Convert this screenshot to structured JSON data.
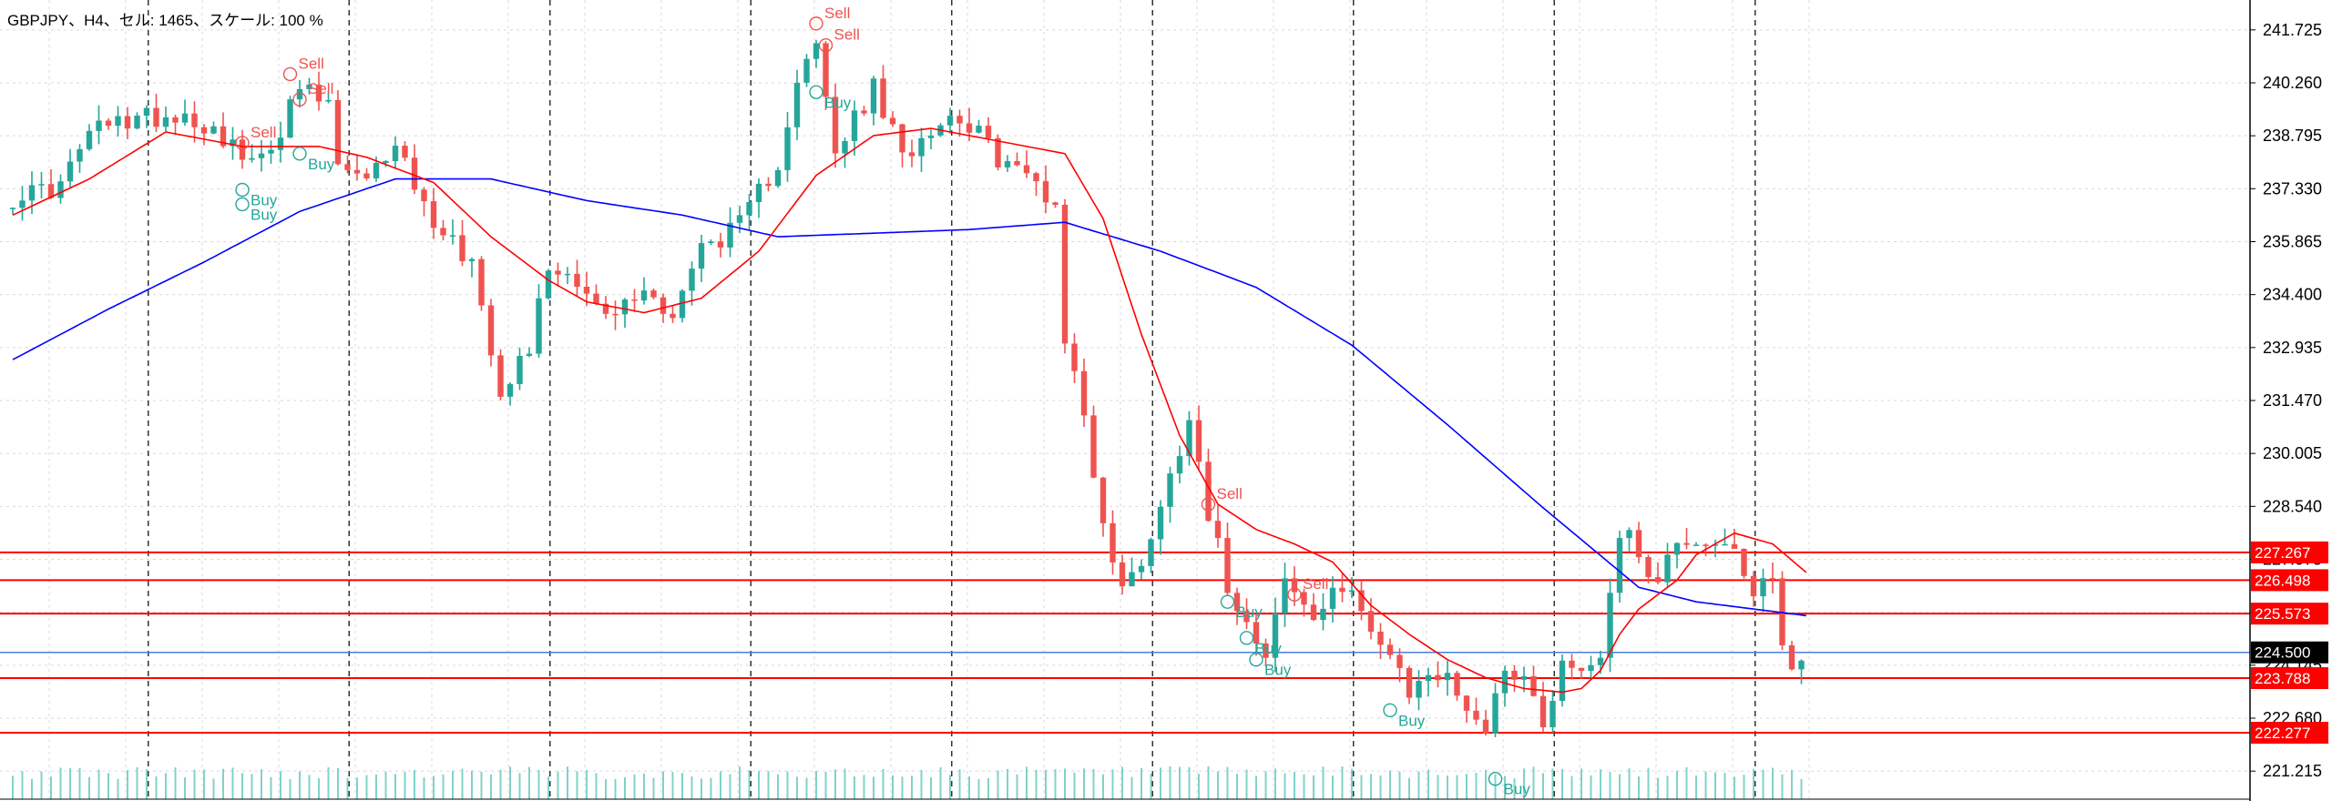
{
  "header": {
    "title": "GBPJPY、H4、セル: 1465、スケール: 100 %"
  },
  "colors": {
    "bull": "#26a69a",
    "bear": "#ef5350",
    "ma_fast": "#ff0000",
    "ma_slow": "#0000ff",
    "level": "#ff0000",
    "bid": "#4a7fe0",
    "vsep": "#333333",
    "grid": "#d9d9d9",
    "signal_sell": "#ef5350",
    "signal_buy": "#26a69a"
  },
  "chart_data": {
    "type": "candlestick",
    "symbol": "GBPJPY",
    "timeframe": "H4",
    "ylim": [
      220.64,
      242.35
    ],
    "y_ticks": [
      "241.725",
      "240.260",
      "238.795",
      "237.330",
      "235.865",
      "234.400",
      "232.935",
      "231.470",
      "230.005",
      "228.540",
      "227.075",
      "225.610",
      "224.145",
      "222.680",
      "221.215"
    ],
    "y_tick_values": [
      241.725,
      240.26,
      238.795,
      237.33,
      235.865,
      234.4,
      232.935,
      231.47,
      230.005,
      228.54,
      227.075,
      225.61,
      224.145,
      222.68,
      221.215
    ],
    "x_separators": [
      8,
      29,
      50,
      71,
      92,
      113,
      134,
      155,
      176
    ],
    "candle_count": 188,
    "levels": [
      {
        "value": 227.267,
        "label": "227.267"
      },
      {
        "value": 226.498,
        "label": "226.498"
      },
      {
        "value": 225.573,
        "label": "225.573"
      },
      {
        "value": 223.788,
        "label": "223.788"
      },
      {
        "value": 222.277,
        "label": "222.277"
      }
    ],
    "bid": {
      "value": 224.5,
      "label": "224.500"
    },
    "anchors": [
      [
        0,
        237.1
      ],
      [
        5,
        237.4
      ],
      [
        8,
        238.9
      ],
      [
        13,
        239.3
      ],
      [
        18,
        239.4
      ],
      [
        22,
        238.8
      ],
      [
        25,
        237.9
      ],
      [
        28,
        239.0
      ],
      [
        30,
        240.1
      ],
      [
        33,
        239.6
      ],
      [
        34,
        238.0
      ],
      [
        37,
        237.4
      ],
      [
        40,
        238.7
      ],
      [
        43,
        236.8
      ],
      [
        48,
        235.3
      ],
      [
        50,
        233.0
      ],
      [
        51,
        231.8
      ],
      [
        54,
        233.0
      ],
      [
        56,
        235.2
      ],
      [
        59,
        234.9
      ],
      [
        62,
        233.7
      ],
      [
        66,
        234.5
      ],
      [
        69,
        233.9
      ],
      [
        72,
        235.7
      ],
      [
        76,
        236.3
      ],
      [
        80,
        238.1
      ],
      [
        82,
        240.4
      ],
      [
        84,
        241.2
      ],
      [
        86,
        238.3
      ],
      [
        90,
        240.1
      ],
      [
        93,
        238.2
      ],
      [
        96,
        239.1
      ],
      [
        99,
        239.4
      ],
      [
        103,
        238.2
      ],
      [
        107,
        237.5
      ],
      [
        109,
        236.9
      ],
      [
        110,
        233.2
      ],
      [
        112,
        231.1
      ],
      [
        114,
        228.0
      ],
      [
        116,
        226.2
      ],
      [
        118,
        227.1
      ],
      [
        120,
        228.5
      ],
      [
        122,
        230.2
      ],
      [
        123,
        231.2
      ],
      [
        125,
        228.4
      ],
      [
        127,
        226.4
      ],
      [
        129,
        225.4
      ],
      [
        131,
        224.6
      ],
      [
        133,
        226.5
      ],
      [
        136,
        225.4
      ],
      [
        138,
        226.0
      ],
      [
        140,
        226.5
      ],
      [
        142,
        225.1
      ],
      [
        144,
        224.3
      ],
      [
        146,
        223.3
      ],
      [
        148,
        224.0
      ],
      [
        150,
        223.7
      ],
      [
        152,
        223.1
      ],
      [
        154,
        222.3
      ],
      [
        156,
        224.2
      ],
      [
        158,
        223.8
      ],
      [
        160,
        222.6
      ],
      [
        162,
        224.2
      ],
      [
        164,
        224.0
      ],
      [
        166,
        224.5
      ],
      [
        168,
        227.9
      ],
      [
        170,
        227.3
      ],
      [
        172,
        226.4
      ],
      [
        174,
        227.7
      ],
      [
        176,
        227.6
      ],
      [
        178,
        227.6
      ],
      [
        180,
        227.1
      ],
      [
        182,
        225.9
      ],
      [
        184,
        226.8
      ],
      [
        185,
        224.6
      ],
      [
        186,
        224.0
      ],
      [
        187,
        224.3
      ]
    ],
    "ma_fast_anchors": [
      [
        0,
        236.6
      ],
      [
        8,
        237.6
      ],
      [
        16,
        238.9
      ],
      [
        24,
        238.5
      ],
      [
        32,
        238.5
      ],
      [
        37,
        238.2
      ],
      [
        44,
        237.5
      ],
      [
        50,
        236.0
      ],
      [
        56,
        234.8
      ],
      [
        60,
        234.2
      ],
      [
        66,
        233.9
      ],
      [
        72,
        234.3
      ],
      [
        78,
        235.6
      ],
      [
        84,
        237.7
      ],
      [
        90,
        238.8
      ],
      [
        96,
        239.0
      ],
      [
        104,
        238.6
      ],
      [
        110,
        238.3
      ],
      [
        114,
        236.5
      ],
      [
        118,
        233.3
      ],
      [
        122,
        230.5
      ],
      [
        126,
        228.6
      ],
      [
        130,
        227.9
      ],
      [
        134,
        227.5
      ],
      [
        138,
        227.0
      ],
      [
        142,
        225.8
      ],
      [
        146,
        225.0
      ],
      [
        150,
        224.3
      ],
      [
        154,
        223.8
      ],
      [
        158,
        223.5
      ],
      [
        162,
        223.4
      ],
      [
        164,
        223.5
      ],
      [
        166,
        224.0
      ],
      [
        168,
        225.0
      ],
      [
        170,
        225.7
      ],
      [
        172,
        226.1
      ],
      [
        174,
        226.5
      ],
      [
        176,
        227.2
      ],
      [
        180,
        227.8
      ],
      [
        184,
        227.5
      ],
      [
        188,
        226.6
      ]
    ],
    "ma_slow_anchors": [
      [
        0,
        232.6
      ],
      [
        10,
        234.0
      ],
      [
        20,
        235.3
      ],
      [
        30,
        236.7
      ],
      [
        40,
        237.6
      ],
      [
        50,
        237.6
      ],
      [
        60,
        237.0
      ],
      [
        70,
        236.6
      ],
      [
        80,
        236.0
      ],
      [
        90,
        236.1
      ],
      [
        100,
        236.2
      ],
      [
        110,
        236.4
      ],
      [
        120,
        235.6
      ],
      [
        130,
        234.6
      ],
      [
        140,
        233.0
      ],
      [
        150,
        230.8
      ],
      [
        160,
        228.5
      ],
      [
        170,
        226.3
      ],
      [
        176,
        225.9
      ],
      [
        182,
        225.7
      ],
      [
        188,
        225.5
      ]
    ],
    "signals": [
      {
        "i": 29,
        "price": 240.5,
        "label": "Sell",
        "type": "sell"
      },
      {
        "i": 30,
        "price": 239.8,
        "label": "Sell",
        "type": "sell"
      },
      {
        "i": 24,
        "price": 238.6,
        "label": "Sell",
        "type": "sell"
      },
      {
        "i": 24,
        "price": 237.3,
        "label": "Buy",
        "type": "buy"
      },
      {
        "i": 24,
        "price": 236.9,
        "label": "Buy",
        "type": "buy"
      },
      {
        "i": 30,
        "price": 238.3,
        "label": "Buy",
        "type": "buy"
      },
      {
        "i": 84,
        "price": 241.9,
        "label": "Sell",
        "type": "sell"
      },
      {
        "i": 85,
        "price": 241.3,
        "label": "Sell",
        "type": "sell"
      },
      {
        "i": 84,
        "price": 240.0,
        "label": "Buy",
        "type": "buy"
      },
      {
        "i": 125,
        "price": 228.6,
        "label": "Sell",
        "type": "sell"
      },
      {
        "i": 134,
        "price": 226.1,
        "label": "Sell",
        "type": "sell"
      },
      {
        "i": 127,
        "price": 225.9,
        "label": "Buy",
        "type": "buy"
      },
      {
        "i": 129,
        "price": 224.9,
        "label": "Buy",
        "type": "buy"
      },
      {
        "i": 130,
        "price": 224.3,
        "label": "Buy",
        "type": "buy"
      },
      {
        "i": 144,
        "price": 222.9,
        "label": "Buy",
        "type": "buy"
      },
      {
        "i": 155,
        "price": 221.0,
        "label": "Buy",
        "type": "buy"
      }
    ]
  }
}
